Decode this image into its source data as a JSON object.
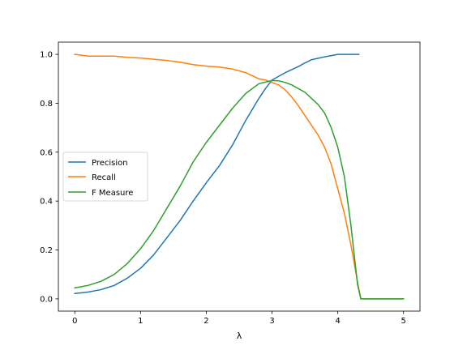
{
  "chart_data": {
    "type": "line",
    "xlabel": "λ",
    "ylabel": "",
    "xlim": [
      -0.25,
      5.25
    ],
    "ylim": [
      -0.05,
      1.05
    ],
    "xticks": [
      0,
      1,
      2,
      3,
      4,
      5
    ],
    "xtick_labels": [
      "0",
      "1",
      "2",
      "3",
      "4",
      "5"
    ],
    "yticks": [
      0.0,
      0.2,
      0.4,
      0.6,
      0.8,
      1.0
    ],
    "ytick_labels": [
      "0.0",
      "0.2",
      "0.4",
      "0.6",
      "0.8",
      "1.0"
    ],
    "grid": false,
    "legend_position": "center-left",
    "series": [
      {
        "name": "Precision",
        "color": "#1f77b4",
        "points": [
          [
            0.0,
            0.022
          ],
          [
            0.2,
            0.028
          ],
          [
            0.4,
            0.038
          ],
          [
            0.6,
            0.055
          ],
          [
            0.8,
            0.085
          ],
          [
            1.0,
            0.125
          ],
          [
            1.2,
            0.18
          ],
          [
            1.4,
            0.25
          ],
          [
            1.6,
            0.32
          ],
          [
            1.8,
            0.4
          ],
          [
            2.0,
            0.475
          ],
          [
            2.2,
            0.545
          ],
          [
            2.4,
            0.63
          ],
          [
            2.6,
            0.73
          ],
          [
            2.8,
            0.82
          ],
          [
            2.9,
            0.86
          ],
          [
            3.0,
            0.895
          ],
          [
            3.1,
            0.91
          ],
          [
            3.2,
            0.925
          ],
          [
            3.4,
            0.95
          ],
          [
            3.5,
            0.965
          ],
          [
            3.6,
            0.978
          ],
          [
            3.8,
            0.99
          ],
          [
            4.0,
            1.0
          ],
          [
            4.2,
            1.0
          ],
          [
            4.32,
            1.0
          ]
        ]
      },
      {
        "name": "Recall",
        "color": "#ff7f0e",
        "points": [
          [
            0.0,
            1.0
          ],
          [
            0.2,
            0.993
          ],
          [
            0.4,
            0.993
          ],
          [
            0.6,
            0.993
          ],
          [
            0.8,
            0.988
          ],
          [
            1.0,
            0.985
          ],
          [
            1.2,
            0.98
          ],
          [
            1.4,
            0.975
          ],
          [
            1.6,
            0.968
          ],
          [
            1.8,
            0.958
          ],
          [
            2.0,
            0.952
          ],
          [
            2.2,
            0.948
          ],
          [
            2.4,
            0.94
          ],
          [
            2.6,
            0.925
          ],
          [
            2.8,
            0.9
          ],
          [
            2.9,
            0.895
          ],
          [
            3.0,
            0.885
          ],
          [
            3.1,
            0.875
          ],
          [
            3.2,
            0.855
          ],
          [
            3.3,
            0.825
          ],
          [
            3.4,
            0.79
          ],
          [
            3.5,
            0.75
          ],
          [
            3.6,
            0.71
          ],
          [
            3.7,
            0.67
          ],
          [
            3.8,
            0.62
          ],
          [
            3.9,
            0.55
          ],
          [
            4.0,
            0.45
          ],
          [
            4.1,
            0.35
          ],
          [
            4.2,
            0.22
          ],
          [
            4.3,
            0.07
          ],
          [
            4.35,
            0.0
          ],
          [
            5.0,
            0.0
          ]
        ]
      },
      {
        "name": "F Measure",
        "color": "#2ca02c",
        "points": [
          [
            0.0,
            0.045
          ],
          [
            0.2,
            0.055
          ],
          [
            0.4,
            0.072
          ],
          [
            0.6,
            0.1
          ],
          [
            0.8,
            0.145
          ],
          [
            1.0,
            0.205
          ],
          [
            1.2,
            0.28
          ],
          [
            1.4,
            0.37
          ],
          [
            1.6,
            0.46
          ],
          [
            1.8,
            0.56
          ],
          [
            2.0,
            0.64
          ],
          [
            2.2,
            0.71
          ],
          [
            2.4,
            0.78
          ],
          [
            2.6,
            0.84
          ],
          [
            2.8,
            0.88
          ],
          [
            3.0,
            0.893
          ],
          [
            3.1,
            0.892
          ],
          [
            3.2,
            0.885
          ],
          [
            3.3,
            0.875
          ],
          [
            3.4,
            0.86
          ],
          [
            3.5,
            0.845
          ],
          [
            3.6,
            0.82
          ],
          [
            3.7,
            0.795
          ],
          [
            3.8,
            0.76
          ],
          [
            3.9,
            0.7
          ],
          [
            4.0,
            0.62
          ],
          [
            4.1,
            0.5
          ],
          [
            4.2,
            0.3
          ],
          [
            4.3,
            0.06
          ],
          [
            4.35,
            0.0
          ],
          [
            5.0,
            0.0
          ]
        ]
      }
    ]
  }
}
